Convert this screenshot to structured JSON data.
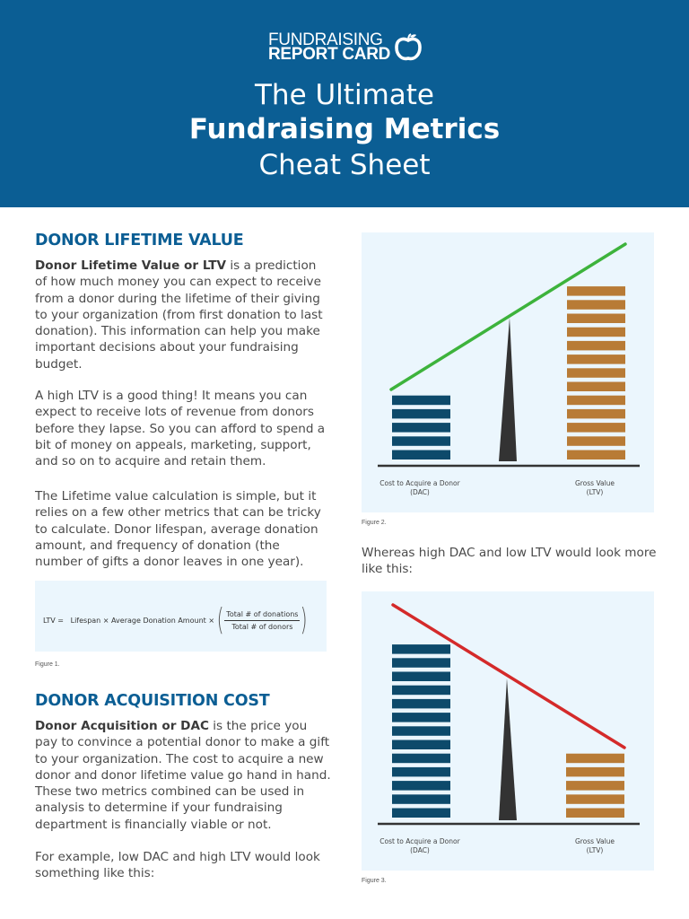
{
  "header": {
    "logo": {
      "line1": "FUNDRAISING",
      "line2": "REPORT CARD",
      "icon": "apple-icon"
    },
    "title_line1": "The Ultimate",
    "title_line2": "Fundraising Metrics",
    "title_line3": "Cheat Sheet",
    "background_color": "#0b5e94"
  },
  "sections": {
    "ltv": {
      "heading": "DONOR LIFETIME VALUE",
      "p1_bold": "Donor Lifetime Value or LTV",
      "p1_rest": " is a prediction of how much money you can expect to receive from a donor during the lifetime of their giving to your organization (from first donation to last donation). This information can help you make important decisions about your fundraising budget.",
      "p2": "A high LTV is a good thing! It means you can expect to receive lots of revenue from donors before they lapse. So you can afford to spend a bit of money on appeals, marketing, support, and so on to acquire and retain them.",
      "p3": "The Lifetime value calculation is simple, but it relies on a few other metrics that can be tricky to calculate. Donor lifespan, average donation amount, and frequency of donation (the number of gifts a donor leaves in one year)."
    },
    "dac": {
      "heading": "DONOR ACQUISITION COST",
      "p1_bold": "Donor Acquisition or DAC",
      "p1_rest": " is the price you pay to convince a potential donor to make a gift to your organization. The cost to acquire a new donor and donor lifetime value go hand in hand. These two metrics combined can be used in analysis to determine if your fundraising department is financially viable or not.",
      "p2": "For example, low DAC and high LTV would look something like this:"
    },
    "whereas": "Whereas high DAC and low LTV would look more like this:"
  },
  "figure1": {
    "lhs": "LTV =",
    "term1": "Lifespan",
    "times": "×",
    "term2": "Average Donation Amount",
    "numerator": "Total # of donations",
    "denominator": "Total # of donors",
    "caption": "Figure 1."
  },
  "figure2": {
    "caption": "Figure 2.",
    "left_label_1": "Cost to Acquire a Donor",
    "left_label_2": "(DAC)",
    "right_label_1": "Gross Value",
    "right_label_2": "(LTV)",
    "dac_bars": 5,
    "ltv_bars": 13,
    "line_color": "#3db33c",
    "dac_color": "#0d4a6b",
    "ltv_color": "#b87b36"
  },
  "figure3": {
    "caption": "Figure 3.",
    "left_label_1": "Cost to Acquire a Donor",
    "left_label_2": "(DAC)",
    "right_label_1": "Gross Value",
    "right_label_2": "(LTV)",
    "dac_bars": 13,
    "ltv_bars": 5,
    "line_color": "#d42a2a",
    "dac_color": "#0d4a6b",
    "ltv_color": "#b87b36"
  }
}
